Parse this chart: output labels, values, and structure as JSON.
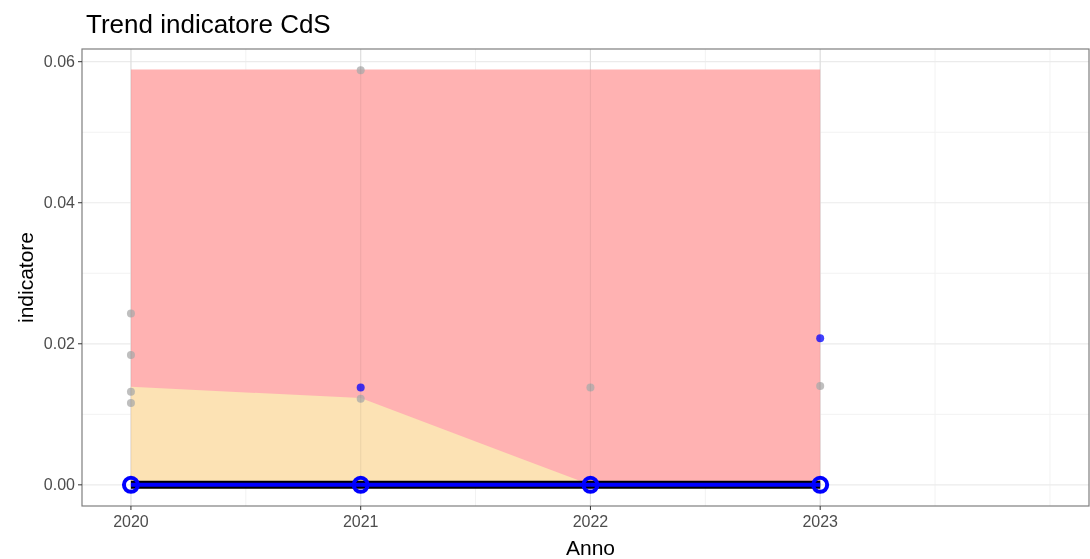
{
  "chart_data": {
    "type": "line",
    "title": "Trend indicatore CdS",
    "xlabel": "Anno",
    "ylabel": "indicatore",
    "x": [
      2020,
      2021,
      2022,
      2023
    ],
    "series": [
      {
        "type": "area",
        "color": "#ffb2b2",
        "values": [
          0.0589,
          0.0589,
          0.0589,
          0.0589
        ]
      },
      {
        "type": "area",
        "color": "#fce2b4",
        "values": [
          0.0139,
          0.0123,
          0,
          0
        ]
      },
      {
        "type": "scatter",
        "color": "#aaaaaa",
        "marker": "circle",
        "x": [
          2020,
          2020,
          2020,
          2020,
          2021,
          2021,
          2022,
          2023
        ],
        "values": [
          0.0243,
          0.0184,
          0.0132,
          0.0116,
          0.0588,
          0.0122,
          0.0138,
          0.014
        ]
      },
      {
        "type": "scatter",
        "color": "#0000ff",
        "marker": "circle",
        "x": [
          2021,
          2023
        ],
        "values": [
          0.0138,
          0.0208
        ]
      },
      {
        "color": "#000000",
        "marker": "none",
        "values": [
          0,
          0,
          0,
          0
        ]
      },
      {
        "color": "#0000ff",
        "marker": "circle",
        "values": [
          0,
          0,
          0,
          0
        ]
      }
    ],
    "xlim": [
      2019.787,
      2024.17
    ],
    "ylim": [
      -0.003,
      0.0618
    ],
    "xticks": [
      2020,
      2021,
      2022,
      2023
    ],
    "yticks": [
      {
        "value": 0,
        "label": "0.00"
      },
      {
        "value": 0.02,
        "label": "0.02"
      },
      {
        "value": 0.04,
        "label": "0.04"
      },
      {
        "value": 0.06,
        "label": "0.06"
      }
    ],
    "grid": true
  }
}
